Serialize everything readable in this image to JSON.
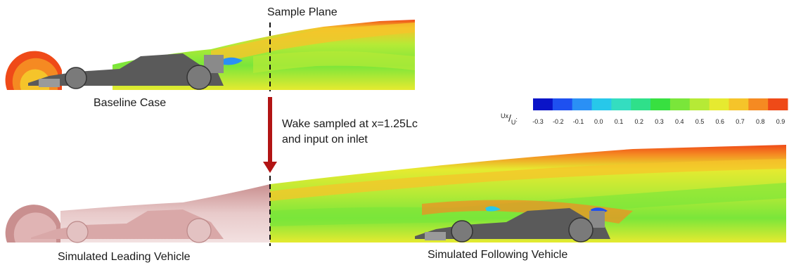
{
  "labels": {
    "sample_plane": "Sample Plane",
    "baseline_case": "Baseline Case",
    "wake_line1": "Wake sampled at x=1.25Lc",
    "wake_line2": "and input on inlet",
    "leading_vehicle": "Simulated Leading Vehicle",
    "following_vehicle": "Simulated Following Vehicle"
  },
  "colorbar": {
    "quantity_top": "Ux",
    "quantity_bottom": "U",
    "ticks": [
      "-0.3",
      "-0.2",
      "-0.1",
      "0.0",
      "0.1",
      "0.2",
      "0.3",
      "0.4",
      "0.5",
      "0.6",
      "0.7",
      "0.8",
      "0.9"
    ],
    "colors": [
      "#0a14c8",
      "#1e50f0",
      "#2a90f5",
      "#27c8ea",
      "#34ddc0",
      "#2fe08a",
      "#38e040",
      "#7ae63a",
      "#b6ea36",
      "#e6ea30",
      "#f5c42a",
      "#f58a22",
      "#ef4a18"
    ]
  },
  "colors": {
    "arrow": "#b21414",
    "car": "#5a5a5a",
    "tire": "#7a7a7a",
    "wake_hot": "#ef4a18",
    "wake_mid": "#f5c42a",
    "wake_cool": "#7ae63a",
    "faded": "#d9a8a8"
  }
}
